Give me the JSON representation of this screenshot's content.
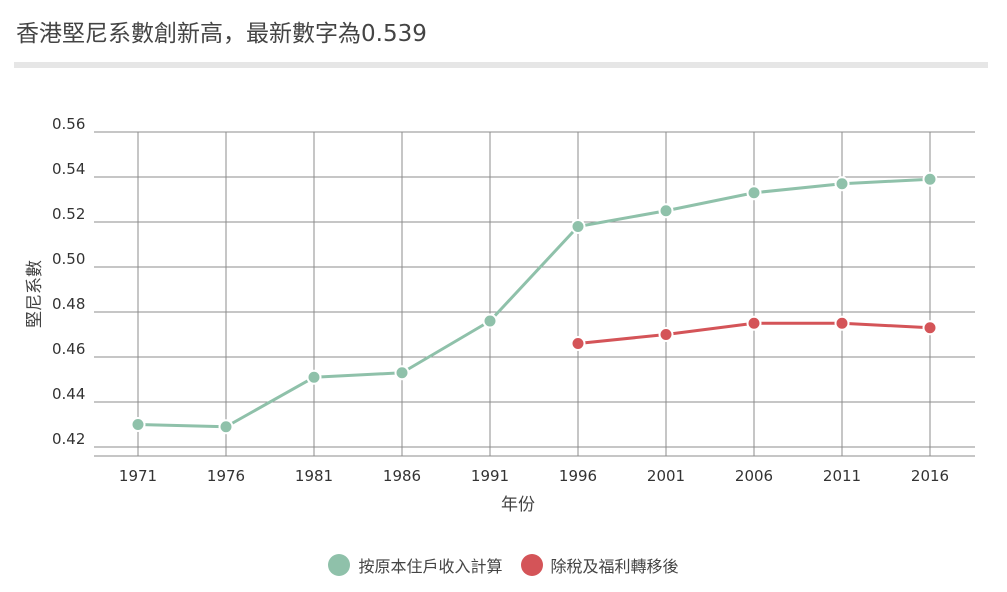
{
  "colors": {
    "series_original": "#8fc1aa",
    "series_after_tax": "#d45458",
    "grid": "#8c8c8c"
  },
  "chart_data": {
    "type": "line",
    "title": "香港堅尼系數創新高，最新數字為0.539",
    "xlabel": "年份",
    "ylabel": "堅尼系數",
    "x": [
      1971,
      1976,
      1981,
      1986,
      1991,
      1996,
      2001,
      2006,
      2011,
      2016
    ],
    "x_tick_labels": [
      "1971",
      "1976",
      "1981",
      "1986",
      "1991",
      "1996",
      "2001",
      "2006",
      "2011",
      "2016"
    ],
    "ylim": [
      0.416,
      0.56
    ],
    "y_ticks": [
      0.42,
      0.44,
      0.46,
      0.48,
      0.5,
      0.52,
      0.54,
      0.56
    ],
    "y_tick_labels": [
      "0.42",
      "0.44",
      "0.46",
      "0.48",
      "0.50",
      "0.52",
      "0.54",
      "0.56"
    ],
    "grid": true,
    "legend_position": "bottom-center",
    "series": [
      {
        "name": "按原本住戶收入計算",
        "values": [
          0.43,
          0.429,
          0.451,
          0.453,
          0.476,
          0.518,
          0.525,
          0.533,
          0.537,
          0.539
        ]
      },
      {
        "name": "除稅及福利轉移後",
        "values": [
          null,
          null,
          null,
          null,
          null,
          0.466,
          0.47,
          0.475,
          0.475,
          0.473
        ]
      }
    ]
  }
}
